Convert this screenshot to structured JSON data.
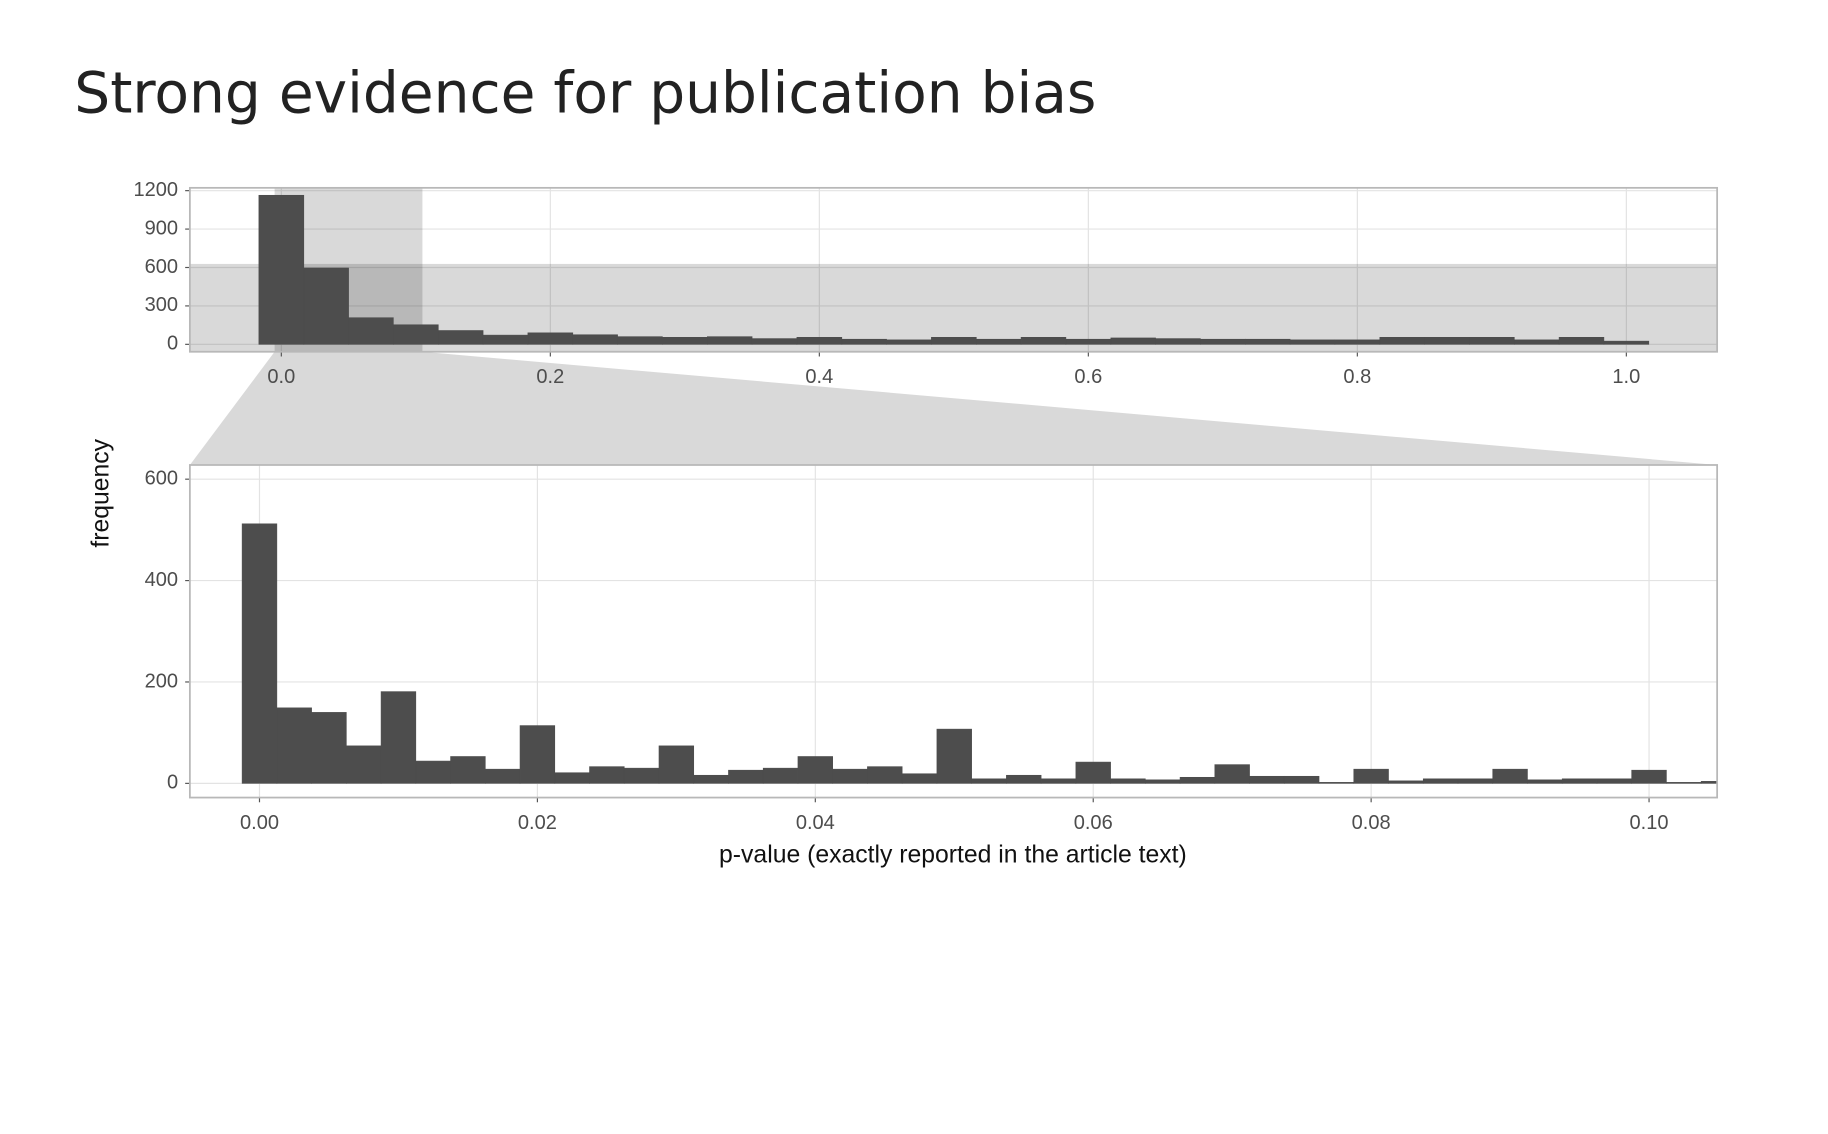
{
  "title": "Strong evidence for publication bias",
  "ylabel": "frequency",
  "xlabel": "p-value (exactly reported in the article text)",
  "chart_data": [
    {
      "type": "histogram",
      "color": "#4d4d4d",
      "grid": true,
      "bins": [
        -0.0167,
        0.0167,
        0.05,
        0.0833,
        0.1167,
        0.15,
        0.1833,
        0.2167,
        0.25,
        0.2833,
        0.3167,
        0.35,
        0.3833,
        0.4167,
        0.45,
        0.4833,
        0.5167,
        0.55,
        0.5833,
        0.6167,
        0.65,
        0.6833,
        0.7167,
        0.75,
        0.7833,
        0.8167,
        0.85,
        0.8833,
        0.9167,
        0.95,
        0.9833,
        1.0167
      ],
      "values": [
        1164,
        596,
        208,
        153,
        108,
        72,
        90,
        75,
        60,
        55,
        60,
        45,
        55,
        40,
        35,
        55,
        40,
        55,
        40,
        50,
        45,
        40,
        40,
        35,
        35,
        55,
        55,
        55,
        35,
        55,
        25
      ],
      "xlim": [
        -0.068,
        1.0675
      ],
      "ylim": [
        -58,
        1222
      ],
      "xticks": [
        {
          "value": 0,
          "label": "0.0"
        },
        0.2,
        0.4,
        0.6,
        0.8,
        {
          "value": 1,
          "label": "1.0"
        }
      ],
      "yticks": [
        0,
        300,
        600,
        900,
        1200
      ]
    },
    {
      "type": "histogram",
      "color": "#4d4d4d",
      "grid": true,
      "bins": [
        -0.00125,
        0.00125,
        0.00375,
        0.00625,
        0.00875,
        0.01125,
        0.01375,
        0.01625,
        0.01875,
        0.02125,
        0.02375,
        0.02625,
        0.02875,
        0.03125,
        0.03375,
        0.03625,
        0.03875,
        0.04125,
        0.04375,
        0.04625,
        0.04875,
        0.05125,
        0.05375,
        0.05625,
        0.05875,
        0.06125,
        0.06375,
        0.06625,
        0.06875,
        0.07125,
        0.07375,
        0.07625,
        0.07875,
        0.08125,
        0.08375,
        0.08625,
        0.08875,
        0.09125,
        0.09375,
        0.09625,
        0.09875,
        0.10125,
        0.10375,
        0.10625
      ],
      "values": [
        512,
        149,
        140,
        74,
        181,
        44,
        53,
        28,
        114,
        21,
        33,
        30,
        74,
        16,
        26,
        30,
        53,
        28,
        33,
        19,
        107,
        9,
        16,
        9,
        42,
        9,
        7,
        12,
        37,
        14,
        14,
        2,
        28,
        5,
        9,
        9,
        28,
        7,
        9,
        9,
        26,
        2,
        4
      ],
      "xlim": [
        -0.00501,
        0.1049
      ],
      "ylim": [
        -28,
        628
      ],
      "xticks": [
        {
          "value": 0,
          "label": "0.00"
        },
        {
          "value": 0.02,
          "label": "0.02"
        },
        {
          "value": 0.04,
          "label": "0.04"
        },
        {
          "value": 0.06,
          "label": "0.06"
        },
        {
          "value": 0.08,
          "label": "0.08"
        },
        {
          "value": 0.1,
          "label": "0.10"
        }
      ],
      "yticks": [
        0,
        200,
        400,
        600
      ]
    }
  ]
}
